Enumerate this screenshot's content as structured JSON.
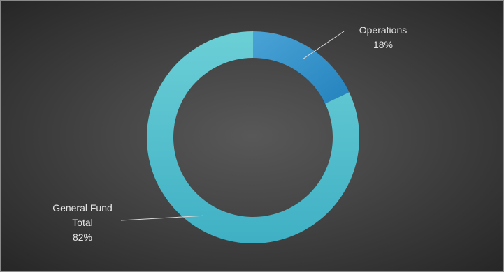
{
  "chart_data": {
    "type": "pie",
    "donut": true,
    "legend": "none",
    "categories": [
      "Operations",
      "General Fund Total"
    ],
    "values": [
      18,
      82
    ],
    "value_labels": [
      "18%",
      "82%"
    ],
    "colors": [
      "#2f8fc9",
      "#4fbccb"
    ]
  }
}
